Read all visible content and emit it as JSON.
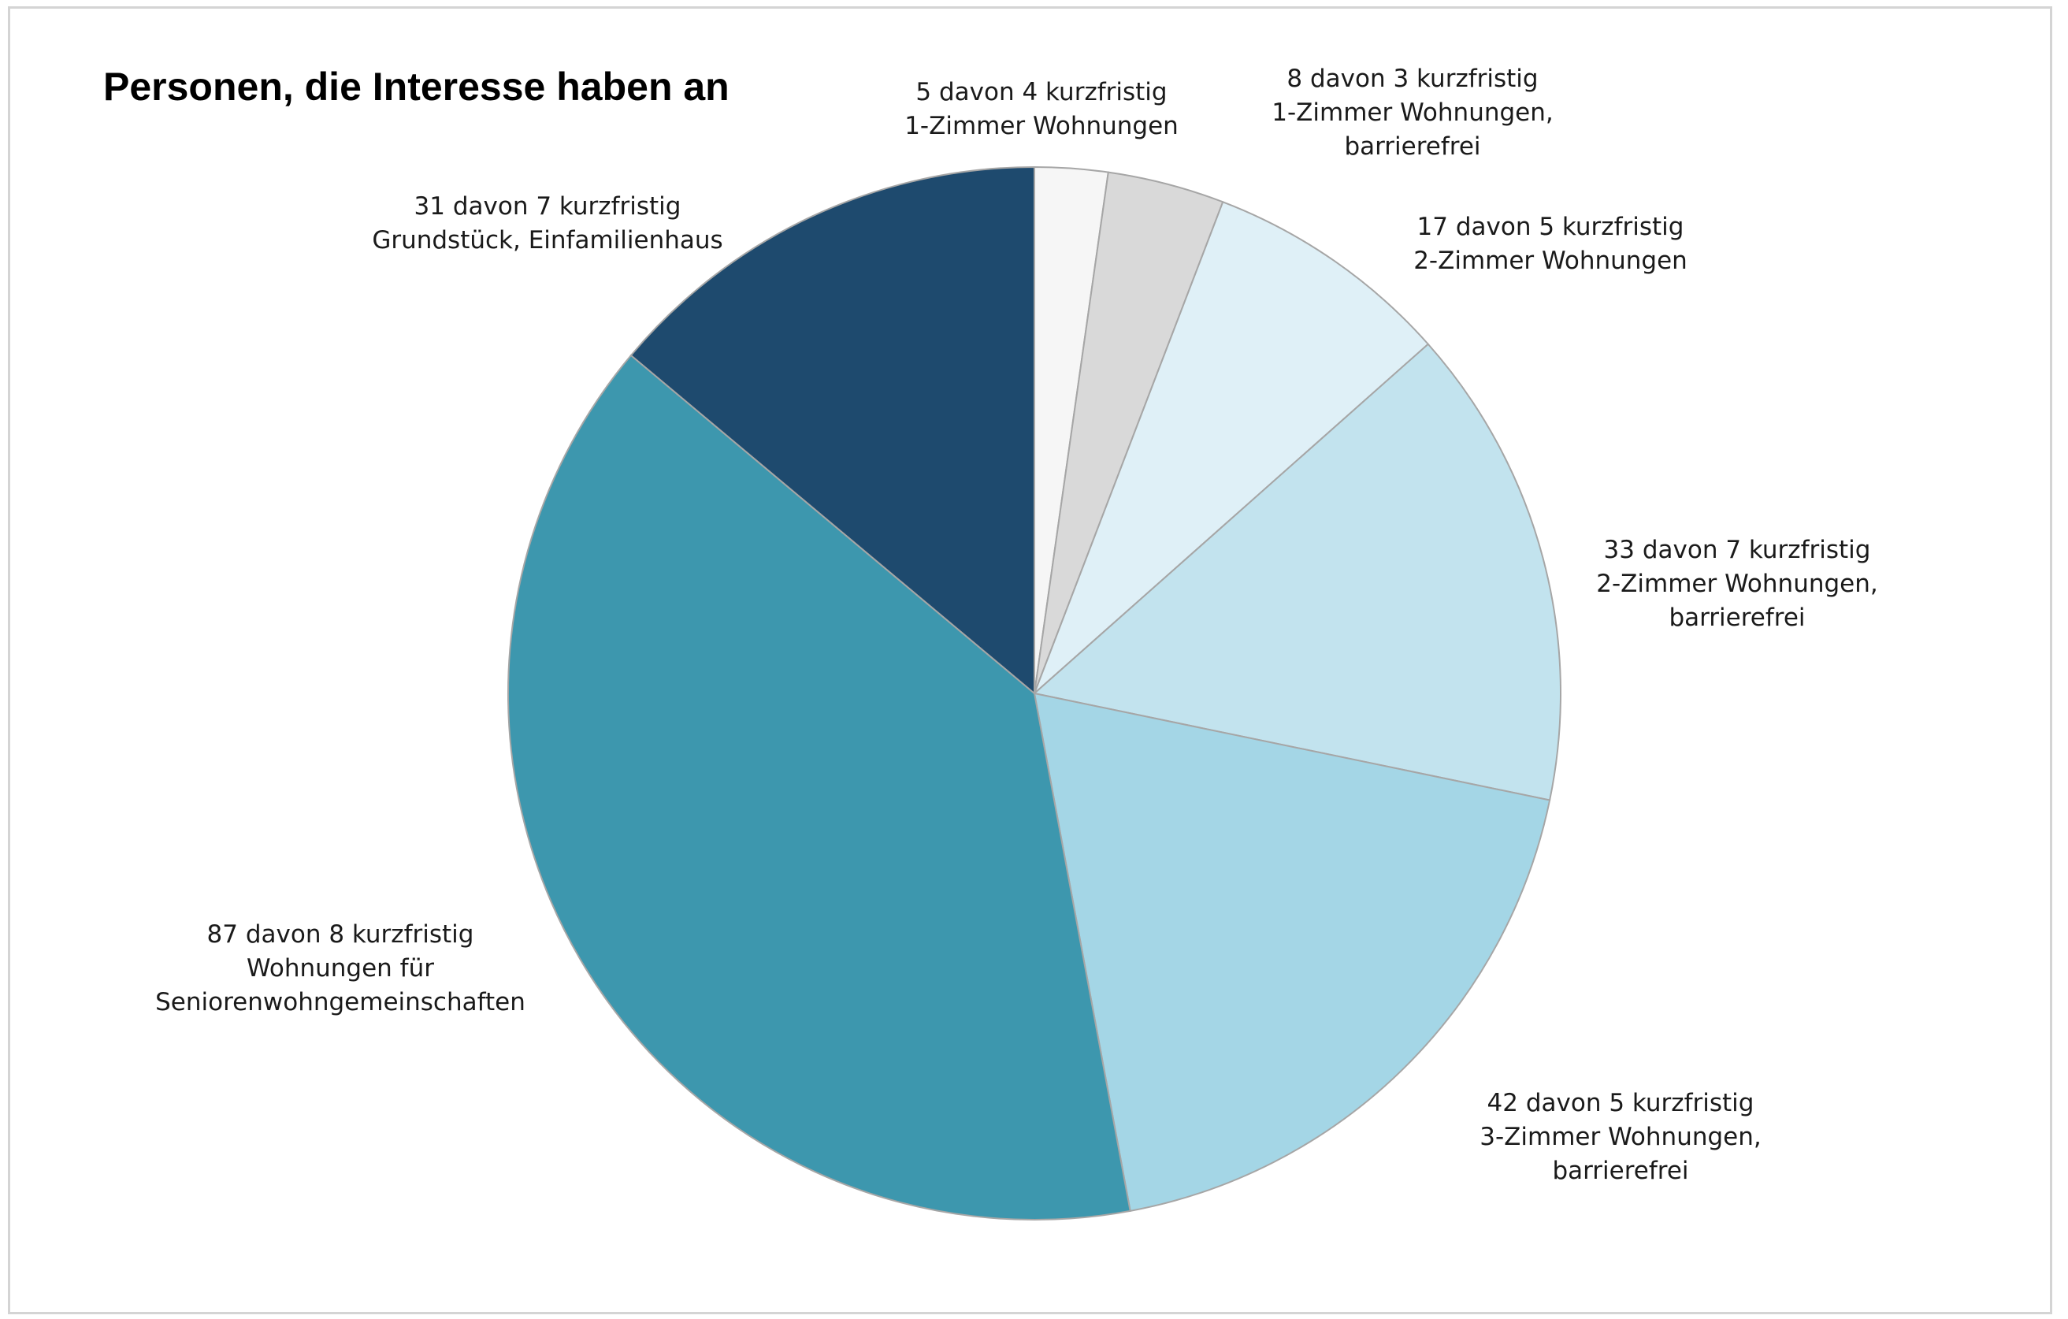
{
  "chart_data": {
    "type": "pie",
    "title": "Personen, die Interesse haben an",
    "start_angle_deg": 0,
    "direction": "clockwise",
    "slices": [
      {
        "value": 5,
        "short_term": 4,
        "line1": "5 davon 4 kurzfristig",
        "line2": "1-Zimmer Wohnungen",
        "line3": "",
        "color": "#f6f6f6"
      },
      {
        "value": 8,
        "short_term": 3,
        "line1": "8 davon 3 kurzfristig",
        "line2": "1-Zimmer Wohnungen,",
        "line3": "barrierefrei",
        "color": "#d9d9d9"
      },
      {
        "value": 17,
        "short_term": 5,
        "line1": "17 davon 5 kurzfristig",
        "line2": "2-Zimmer Wohnungen",
        "line3": "",
        "color": "#dff0f7"
      },
      {
        "value": 33,
        "short_term": 7,
        "line1": "33 davon 7 kurzfristig",
        "line2": "2-Zimmer Wohnungen,",
        "line3": "barrierefrei",
        "color": "#c2e3ee"
      },
      {
        "value": 42,
        "short_term": 5,
        "line1": "42 davon 5 kurzfristig",
        "line2": "3-Zimmer Wohnungen,",
        "line3": "barrierefrei",
        "color": "#a4d6e6"
      },
      {
        "value": 87,
        "short_term": 8,
        "line1": "87 davon 8 kurzfristig",
        "line2": "Wohnungen für",
        "line3": "Seniorenwohngemeinschaften",
        "color": "#3d97ae"
      },
      {
        "value": 31,
        "short_term": 7,
        "line1": "31 davon 7 kurzfristig",
        "line2": "Grundstück, Einfamilienhaus",
        "line3": "",
        "color": "#1e4a6e"
      }
    ]
  }
}
